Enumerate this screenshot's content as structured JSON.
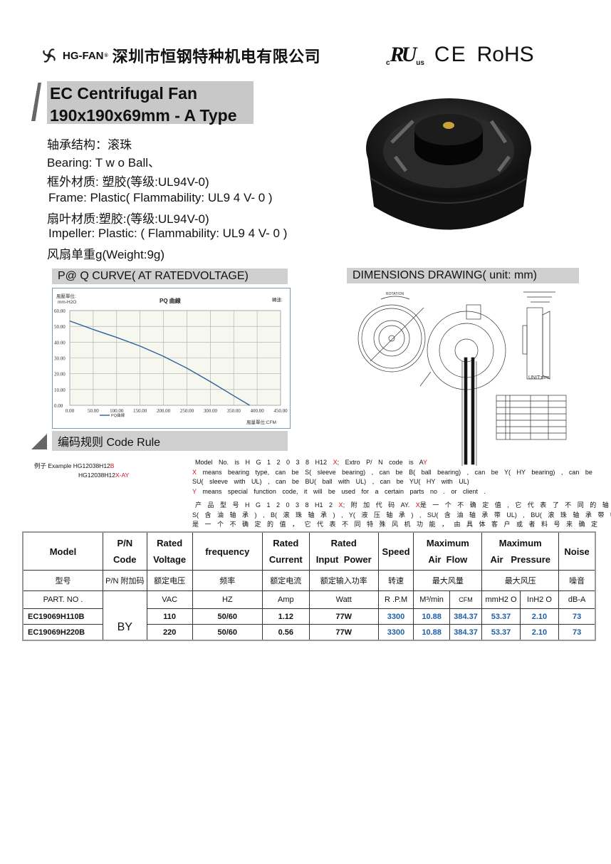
{
  "header": {
    "brand": "HG-FAN",
    "registered": "®",
    "company_cn": "深圳市恒钢特种机电有限公司",
    "certs": {
      "ul_c": "c",
      "ul_us": "us",
      "ce": "CE",
      "rohs": "RoHS"
    }
  },
  "title": {
    "line1": "EC  Centrifugal  Fan",
    "line2": "190x190x69mm - A Type"
  },
  "specs": [
    "轴承结构：滚珠",
    "Bearing:  T w o Ball、",
    "框外材质: 塑胶(等级:UL94V-0)",
    "Frame: Plastic( Flammability: UL9 4  V- 0 )",
    "扇叶材质:塑胶:(等级:UL94V-0)",
    "Impeller: Plastic: ( Flammability: UL9 4  V- 0 )",
    "风扇单重g(Weight:9g)"
  ],
  "pq_section": {
    "title": "P@ Q  CURVE( AT  RATEDVOLTAGE)"
  },
  "dimensions_section": {
    "title": "DIMENSIONS   DRAWING( unit: mm)",
    "rotation_label": "ROTATION",
    "unit_label": "UNIT:mm"
  },
  "chart_data": {
    "type": "line",
    "title": "PQ 曲線",
    "ylabel": "風壓單位:\nmm-H2O",
    "ylabel_line1": "風壓單位:",
    "ylabel_line2": "mm-H2O",
    "xlabel": "風量單位:CFM",
    "top_right_label": "轉速:",
    "xlim": [
      0,
      450
    ],
    "ylim": [
      0,
      60
    ],
    "x_ticks": [
      "0.00",
      "50.00",
      "100.00",
      "150.00",
      "200.00",
      "250.00",
      "300.00",
      "350.00",
      "400.00",
      "450.00"
    ],
    "y_ticks": [
      "0.00",
      "10.00",
      "20.00",
      "30.00",
      "40.00",
      "50.00",
      "60.00"
    ],
    "grid": true,
    "legend_position": "bottom-left",
    "series": [
      {
        "name": "PQ曲線",
        "color": "#2e5f9e",
        "x": [
          0,
          50,
          100,
          150,
          200,
          250,
          300,
          350,
          384
        ],
        "y": [
          53.4,
          48,
          43,
          37.5,
          31,
          23.5,
          15,
          6,
          0
        ]
      }
    ]
  },
  "code_rule": {
    "title": "编码规则  Code Rule",
    "example_label": "例子  Example HG12038H12",
    "example_suffix": "B",
    "example2_prefix": "HG12038H12",
    "example2_suffix": "X-AY",
    "en_l1a": "Model   No.  is   H G 1 2 0 3 8 H12 ",
    "en_l1x": "X",
    "en_l1b": ";   Extro   P/ N   code     is   A",
    "en_l1y": "Y",
    "en_l2x": "X",
    "en_l2": " means  bearing  type,  can  be  S(  sleeve  bearing) ,  can  be  B(  ball  bearing) ,  can  be  Y(  HY  bearing) ,  can  be",
    "en_l3": "SU(  sleeve  with  UL) ,  can  be  BU(  ball  with  UL) ,  can  be  YU(  HY  with  UL)",
    "en_l4y": "Y",
    "en_l4": " means  special  function  code,  it  will  be  used  for  a  certain  parts  no  .    or  client  .",
    "cn_l1a": "产 品 型 号  H G 1 2 0 3 8 H1 2 ",
    "cn_l1x": "X",
    "cn_l1b": "; 附 加 代 码  AY.  ",
    "cn_l1x2": "X",
    "cn_l1c": "是 一 个 不 确 定 值 , 它 代 表 了 不 同 的 轴 承 类 型 ,",
    "cn_l2": "S( 含 油 轴 承 ) , B( 滚 珠 轴 承 ) , Y( 液 压 轴 承 ) , SU( 含 油 轴 承 带 UL) ,   BU( 滚 珠 轴 承 带 UL) , YU( 液 压 轴 承 带 UL) ",
    "cn_l2y": "Y",
    "cn_l3": "是 一 个 不 确 定 的 值 ，  它 代 表 不 同 特 殊 风 机 功 能 ， 由 具 体 客 户 或 者 料 号 来 确 定"
  },
  "table": {
    "headers": [
      "Model",
      "P/N Code",
      "Rated\nVoltage",
      "frequency",
      "Rated\nCurrent",
      "Rated\nInput  Power",
      "Speed",
      "Maximum\nAir  Flow",
      "Maximum\nAir   Pressure",
      "Noise"
    ],
    "headers_cn": [
      "型号",
      "P/N 附加码",
      "额定电压",
      "频率",
      "额定电流",
      "额定输入功率",
      "转速",
      "最大风量",
      "最大风压",
      "噪音"
    ],
    "units": [
      "PART. NO .",
      "VAC",
      "HZ",
      "Amp",
      "Watt",
      "R .P.M",
      "M³/min",
      "CFM",
      "mmH2 O",
      "InH2 O",
      "dB-A"
    ],
    "pn_code": "BY",
    "rows": [
      [
        "EC19069H110B",
        "110",
        "50/60",
        "1.12",
        "77W",
        "3300",
        "10.88",
        "384.37",
        "53.37",
        "2.10",
        "73"
      ],
      [
        "EC19069H220B",
        "220",
        "50/60",
        "0.56",
        "77W",
        "3300",
        "10.88",
        "384.37",
        "53.37",
        "2.10",
        "73"
      ]
    ]
  },
  "colors": {
    "accent_red": "#d0121b",
    "value_blue": "#1f5fa6",
    "header_gray": "#cfcfcf"
  }
}
